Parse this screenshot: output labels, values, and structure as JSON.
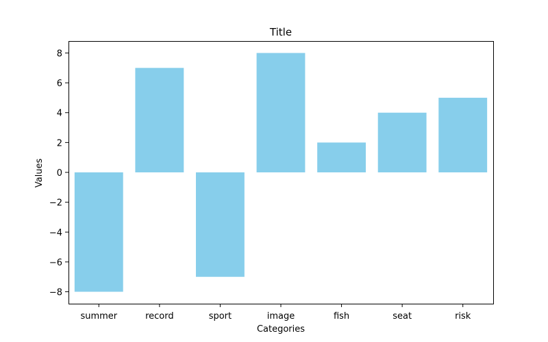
{
  "chart_data": {
    "type": "bar",
    "title": "Title",
    "xlabel": "Categories",
    "ylabel": "Values",
    "categories": [
      "summer",
      "record",
      "sport",
      "image",
      "fish",
      "seat",
      "risk"
    ],
    "values": [
      -8,
      7,
      -7,
      8,
      2,
      4,
      5
    ],
    "ylim": [
      -8.8,
      8.8
    ],
    "yticks": [
      -8,
      -6,
      -4,
      -2,
      0,
      2,
      4,
      6,
      8
    ],
    "ytick_labels": [
      "−8",
      "−6",
      "−4",
      "−2",
      "0",
      "2",
      "4",
      "6",
      "8"
    ],
    "bar_color": "#87CEEB",
    "grid": false,
    "legend": "none"
  }
}
